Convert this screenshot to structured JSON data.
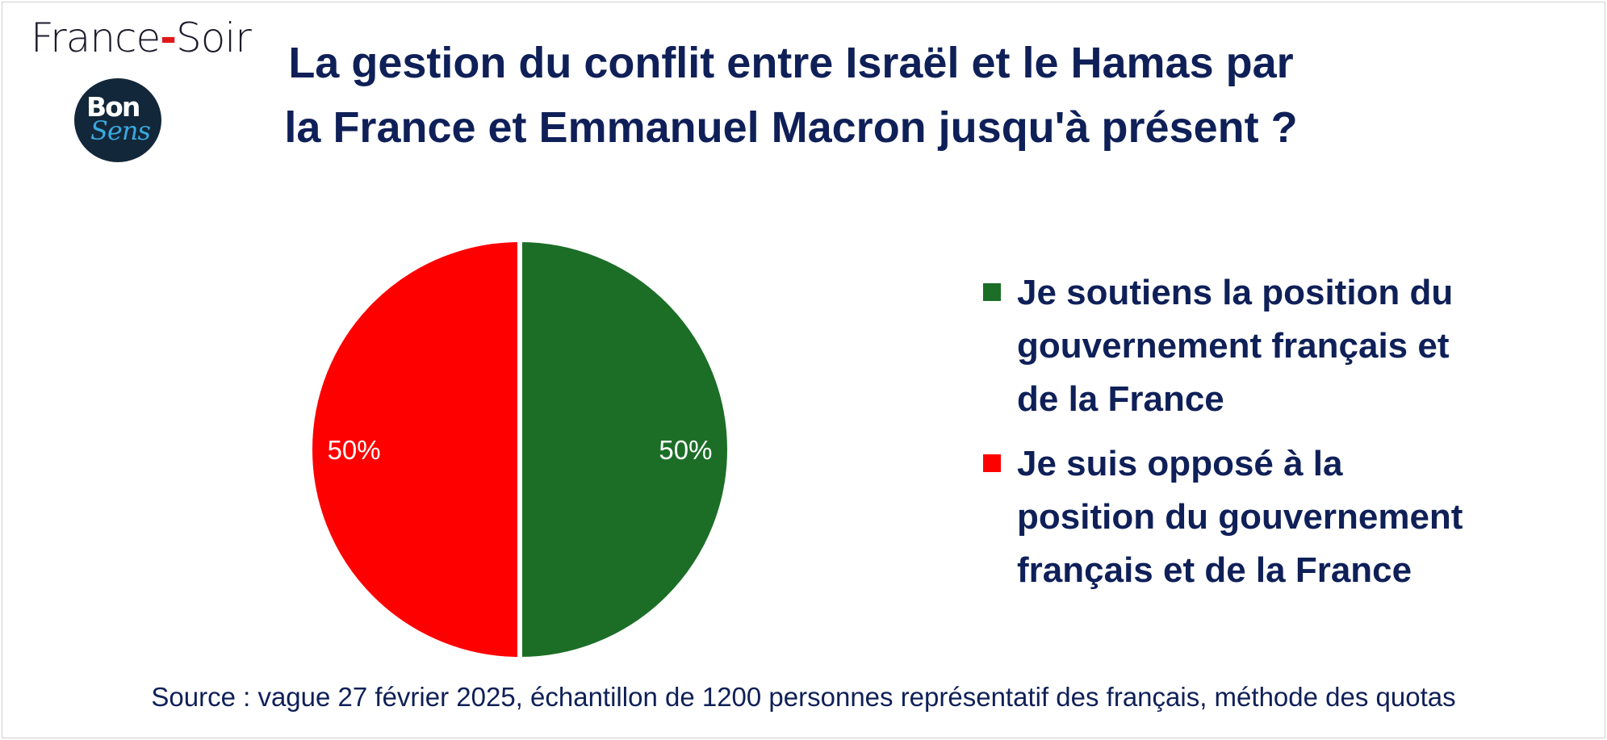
{
  "brand": {
    "name_part1": "France",
    "dash": "-",
    "name_part2": "Soir"
  },
  "logo": {
    "line1": "Bon",
    "line2": "Sens"
  },
  "chart_data": {
    "type": "pie",
    "title_lines": [
      "La gestion du conflit entre Israël et le Hamas par",
      "la France et Emmanuel Macron jusqu'à présent ?"
    ],
    "categories": [
      "Je soutiens la position du gouvernement français et de la France",
      "Je suis opposé à la position du gouvernement français et de la France"
    ],
    "values": [
      50,
      50
    ],
    "data_labels": [
      "50%",
      "50%"
    ],
    "colors": [
      "#1c6e27",
      "#ff0000"
    ],
    "legend_placement": "right",
    "legend_lines": [
      [
        "Je soutiens la position du",
        "gouvernement français et",
        "de la France"
      ],
      [
        "Je suis opposé à la",
        "position du gouvernement",
        "français et de la France"
      ]
    ]
  },
  "source": "Source : vague 27 février 2025, échantillon de 1200 personnes représentatif des français, méthode des quotas"
}
